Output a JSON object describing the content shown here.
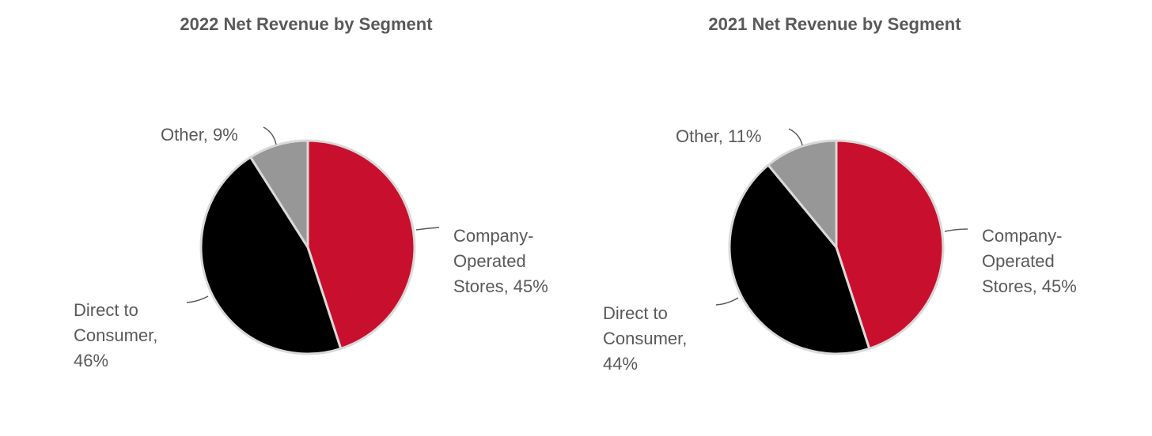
{
  "chart_data": [
    {
      "type": "pie",
      "title": "2022 Net Revenue by Segment",
      "slices": [
        {
          "label": "Company-Operated Stores",
          "value": 45,
          "value_text": "45%",
          "color": "#c8102e",
          "label_lines": [
            "Company-",
            "Operated",
            "Stores, 45%"
          ]
        },
        {
          "label": "Direct to Consumer",
          "value": 46,
          "value_text": "46%",
          "color": "#000000",
          "label_lines": [
            "Direct to",
            "Consumer,",
            "46%"
          ]
        },
        {
          "label": "Other",
          "value": 9,
          "value_text": "9%",
          "color": "#979797",
          "label_lines": [
            "Other, 9%"
          ]
        }
      ]
    },
    {
      "type": "pie",
      "title": "2021 Net Revenue by Segment",
      "slices": [
        {
          "label": "Company-Operated Stores",
          "value": 45,
          "value_text": "45%",
          "color": "#c8102e",
          "label_lines": [
            "Company-",
            "Operated",
            "Stores, 45%"
          ]
        },
        {
          "label": "Direct to Consumer",
          "value": 44,
          "value_text": "44%",
          "color": "#000000",
          "label_lines": [
            "Direct to",
            "Consumer,",
            "44%"
          ]
        },
        {
          "label": "Other",
          "value": 11,
          "value_text": "11%",
          "color": "#979797",
          "label_lines": [
            "Other, 11%"
          ]
        }
      ]
    }
  ]
}
